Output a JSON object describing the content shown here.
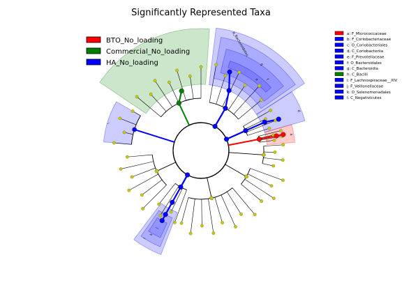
{
  "chart_data": {
    "type": "cladogram",
    "title": "Significantly Represented Taxa",
    "colors": {
      "BTO": "#ff0000",
      "Commercial": "#008000",
      "HA": "#0000ff",
      "nonsig_node": "#c8c800"
    },
    "group_legend": [
      {
        "label": "BTO_No_loading",
        "color": "#ff0000"
      },
      {
        "label": "Commercial_No_loading",
        "color": "#008000"
      },
      {
        "label": "HA_No_loading",
        "color": "#0000ff"
      }
    ],
    "clade_legend": [
      {
        "key": "a",
        "label": "a: F_Micrococcaceae",
        "color": "#ff0000"
      },
      {
        "key": "b",
        "label": "b: F_Coriobacteriaceae",
        "color": "#0000ff"
      },
      {
        "key": "c",
        "label": "c: O_Coriobacteriales",
        "color": "#0000ff"
      },
      {
        "key": "d",
        "label": "d: C_Coriobacteriia",
        "color": "#0000ff"
      },
      {
        "key": "e",
        "label": "e: F_Prevotellaceae",
        "color": "#0000ff"
      },
      {
        "key": "f",
        "label": "f: O_Bacteroidales",
        "color": "#0000ff"
      },
      {
        "key": "g",
        "label": "g: C_Bacteroidia",
        "color": "#0000ff"
      },
      {
        "key": "h",
        "label": "h: C_Bacilli",
        "color": "#008000"
      },
      {
        "key": "i",
        "label": "i: F_Lachnospiraceae__XIV",
        "color": "#0000ff"
      },
      {
        "key": "j",
        "label": "j: F_Veillonellaceae",
        "color": "#0000ff"
      },
      {
        "key": "k",
        "label": "k: O_Selenomonadales",
        "color": "#0000ff"
      },
      {
        "key": "l",
        "label": "l: C_Negativicutes",
        "color": "#0000ff"
      }
    ],
    "sector_labels": [
      {
        "text": "p_Bacteroidetes",
        "group": "HA"
      },
      {
        "text": "g",
        "group": "HA"
      },
      {
        "text": "f",
        "group": "HA"
      },
      {
        "text": "e",
        "group": "HA"
      },
      {
        "text": "d",
        "group": "HA"
      },
      {
        "text": "a",
        "group": "BTO"
      },
      {
        "text": "l",
        "group": "HA"
      },
      {
        "text": "k",
        "group": "HA"
      },
      {
        "text": "j",
        "group": "HA"
      },
      {
        "text": "i",
        "group": "HA"
      }
    ]
  }
}
